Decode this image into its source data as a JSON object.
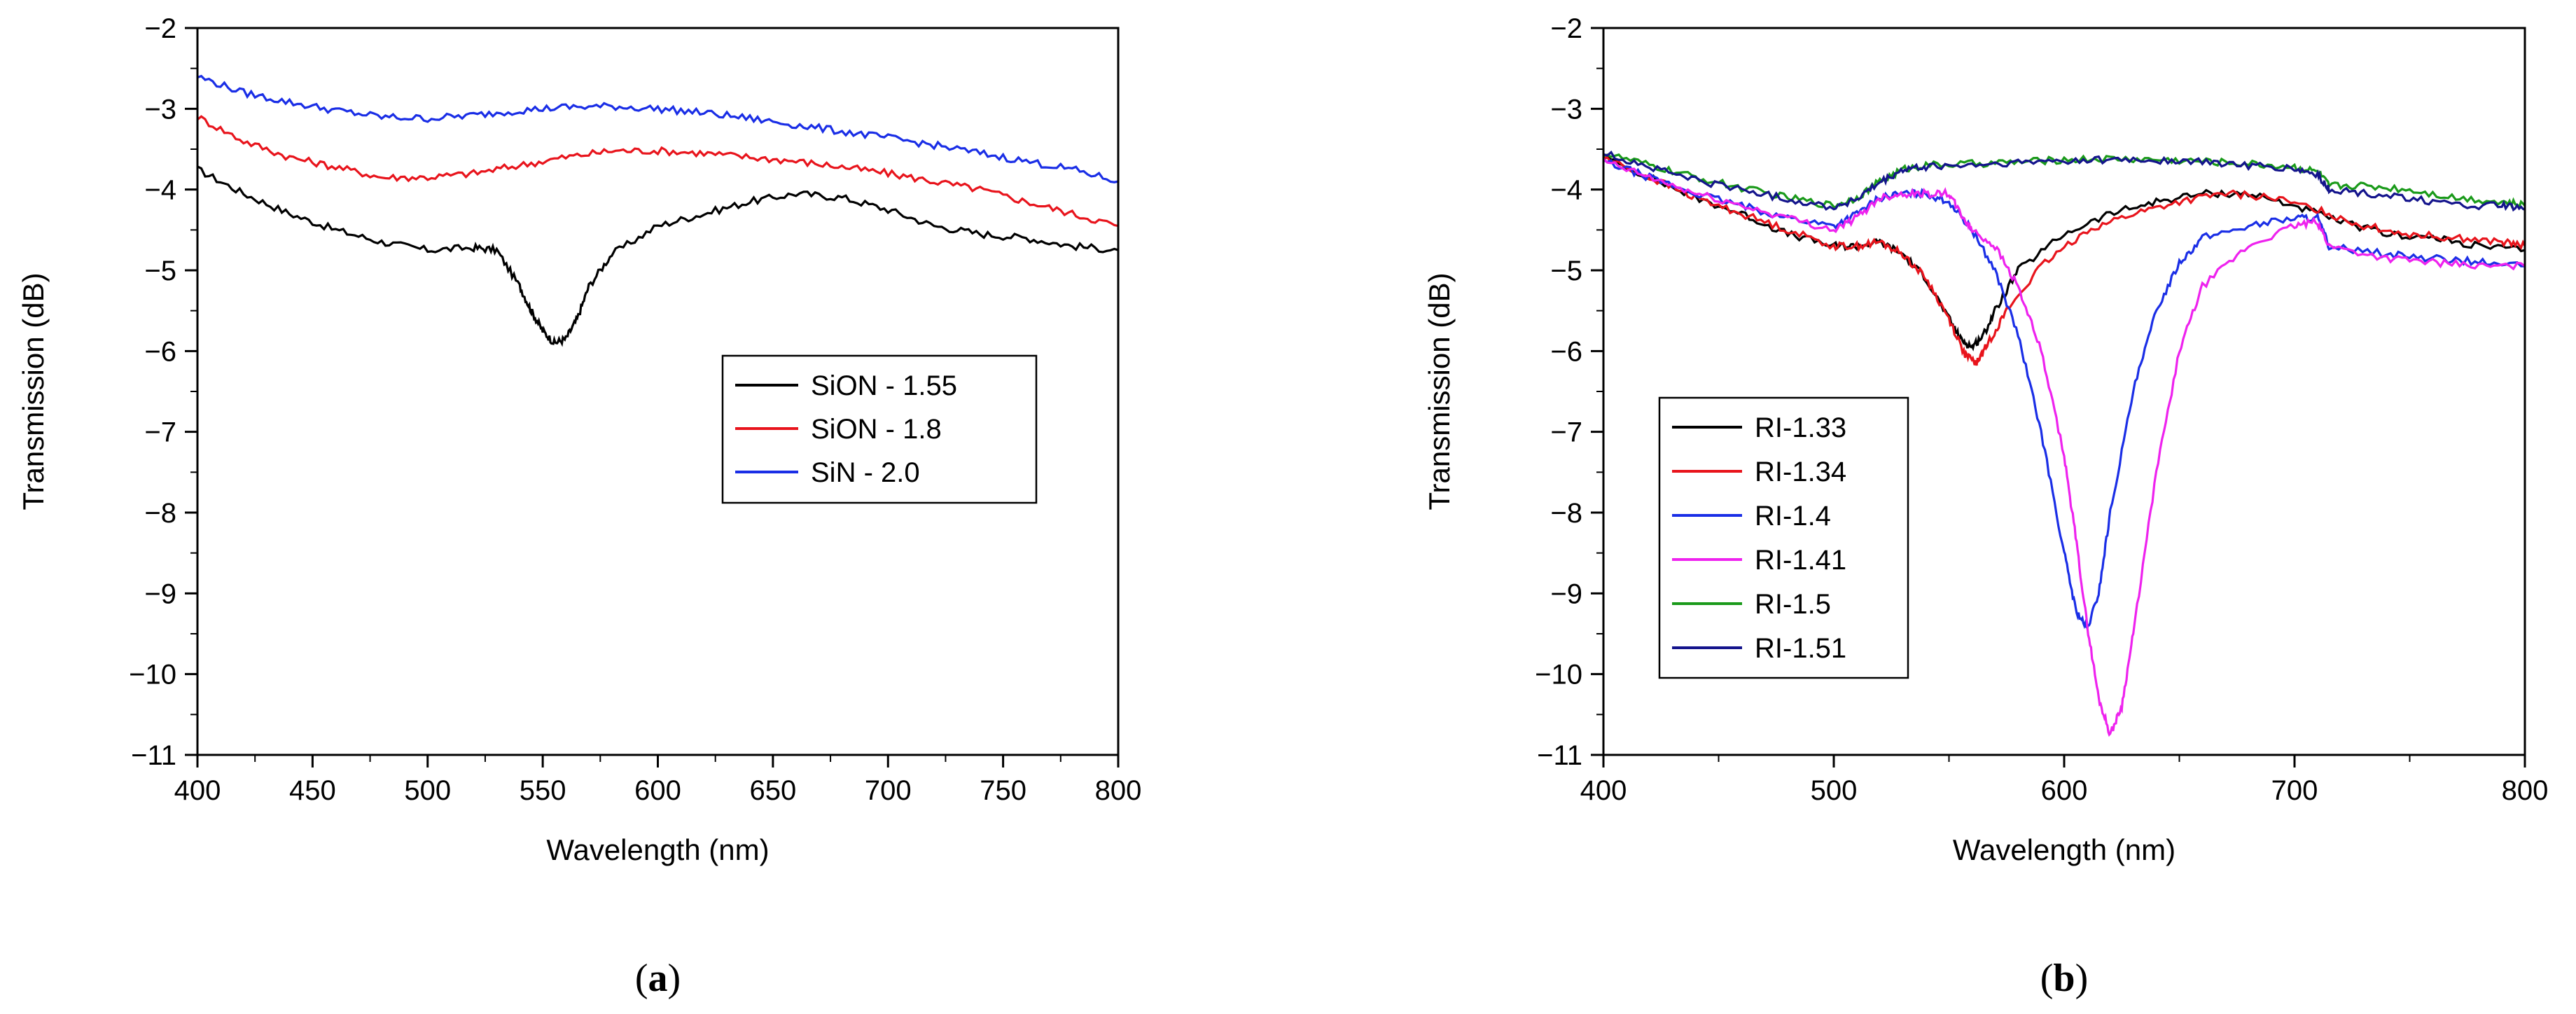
{
  "chart_data": [
    {
      "type": "line",
      "xlabel": "Wavelength (nm)",
      "ylabel": "Transmission (dB)",
      "xlim": [
        400,
        800
      ],
      "ylim": [
        -11,
        -2
      ],
      "xticks": [
        "400",
        "450",
        "500",
        "550",
        "600",
        "650",
        "700",
        "750",
        "800"
      ],
      "yticks": [
        "-2",
        "-3",
        "-4",
        "-5",
        "-6",
        "-7",
        "-8",
        "-9",
        "-10",
        "-11"
      ],
      "legend_position": "center-right",
      "panel_label": "a",
      "series": [
        {
          "name": "SiON - 1.55",
          "color": "#000000",
          "x": [
            400,
            420,
            440,
            460,
            480,
            500,
            520,
            530,
            540,
            545,
            550,
            555,
            560,
            565,
            570,
            580,
            600,
            620,
            640,
            660,
            680,
            700,
            720,
            740,
            760,
            780,
            800
          ],
          "y": [
            -3.75,
            -4.05,
            -4.3,
            -4.5,
            -4.65,
            -4.75,
            -4.72,
            -4.75,
            -5.2,
            -5.5,
            -5.75,
            -5.9,
            -5.85,
            -5.6,
            -5.2,
            -4.8,
            -4.45,
            -4.3,
            -4.15,
            -4.05,
            -4.1,
            -4.25,
            -4.45,
            -4.55,
            -4.6,
            -4.7,
            -4.75
          ]
        },
        {
          "name": "SiON - 1.8",
          "color": "#e8141c",
          "x": [
            400,
            420,
            440,
            460,
            480,
            500,
            520,
            540,
            560,
            580,
            600,
            620,
            640,
            660,
            680,
            700,
            720,
            740,
            760,
            780,
            800
          ],
          "y": [
            -3.1,
            -3.4,
            -3.6,
            -3.72,
            -3.85,
            -3.85,
            -3.8,
            -3.7,
            -3.6,
            -3.52,
            -3.52,
            -3.55,
            -3.6,
            -3.65,
            -3.72,
            -3.8,
            -3.9,
            -4.0,
            -4.15,
            -4.3,
            -4.45
          ]
        },
        {
          "name": "SiN - 2.0",
          "color": "#1a2ee6",
          "x": [
            400,
            420,
            440,
            460,
            480,
            500,
            520,
            540,
            560,
            580,
            600,
            620,
            640,
            660,
            680,
            700,
            720,
            740,
            760,
            780,
            800
          ],
          "y": [
            -2.6,
            -2.8,
            -2.92,
            -3.02,
            -3.1,
            -3.12,
            -3.08,
            -3.02,
            -2.98,
            -2.97,
            -3.0,
            -3.05,
            -3.12,
            -3.2,
            -3.28,
            -3.36,
            -3.45,
            -3.55,
            -3.65,
            -3.75,
            -3.9
          ]
        }
      ]
    },
    {
      "type": "line",
      "xlabel": "Wavelength (nm)",
      "ylabel": "Transmission (dB)",
      "xlim": [
        400,
        800
      ],
      "ylim": [
        -11,
        -2
      ],
      "xticks": [
        "400",
        "500",
        "600",
        "700",
        "800"
      ],
      "yticks": [
        "-2",
        "-3",
        "-4",
        "-5",
        "-6",
        "-7",
        "-8",
        "-9",
        "-10",
        "-11"
      ],
      "legend_position": "bottom-left",
      "panel_label": "b",
      "series": [
        {
          "name": "RI-1.33",
          "color": "#000000",
          "x": [
            400,
            420,
            440,
            460,
            480,
            500,
            510,
            520,
            530,
            540,
            550,
            555,
            560,
            565,
            570,
            580,
            600,
            620,
            640,
            660,
            680,
            700,
            720,
            740,
            760,
            780,
            800
          ],
          "y": [
            -3.6,
            -3.85,
            -4.1,
            -4.3,
            -4.55,
            -4.7,
            -4.7,
            -4.65,
            -4.8,
            -5.1,
            -5.6,
            -5.85,
            -5.95,
            -5.8,
            -5.5,
            -5.0,
            -4.55,
            -4.3,
            -4.15,
            -4.05,
            -4.05,
            -4.2,
            -4.4,
            -4.55,
            -4.6,
            -4.7,
            -4.75
          ]
        },
        {
          "name": "RI-1.34",
          "color": "#e8141c",
          "x": [
            400,
            420,
            440,
            460,
            480,
            500,
            510,
            520,
            530,
            540,
            550,
            557,
            562,
            567,
            575,
            590,
            610,
            630,
            650,
            670,
            690,
            710,
            730,
            750,
            770,
            790,
            800
          ],
          "y": [
            -3.6,
            -3.85,
            -4.1,
            -4.3,
            -4.5,
            -4.7,
            -4.7,
            -4.65,
            -4.8,
            -5.1,
            -5.6,
            -6.05,
            -6.15,
            -5.9,
            -5.5,
            -4.95,
            -4.5,
            -4.3,
            -4.15,
            -4.05,
            -4.1,
            -4.25,
            -4.45,
            -4.55,
            -4.6,
            -4.65,
            -4.7
          ]
        },
        {
          "name": "RI-1.4",
          "color": "#1a2ee6",
          "x": [
            400,
            420,
            440,
            460,
            480,
            500,
            510,
            520,
            530,
            540,
            550,
            560,
            570,
            580,
            590,
            600,
            605,
            610,
            615,
            620,
            630,
            640,
            650,
            660,
            680,
            700,
            710,
            715,
            740,
            760,
            780,
            800
          ],
          "y": [
            -3.65,
            -3.85,
            -4.05,
            -4.2,
            -4.35,
            -4.45,
            -4.3,
            -4.1,
            -4.05,
            -4.05,
            -4.15,
            -4.5,
            -5.0,
            -5.8,
            -7.0,
            -8.5,
            -9.2,
            -9.45,
            -9.0,
            -8.0,
            -6.5,
            -5.5,
            -4.9,
            -4.6,
            -4.45,
            -4.35,
            -4.35,
            -4.7,
            -4.8,
            -4.85,
            -4.9,
            -4.95
          ]
        },
        {
          "name": "RI-1.41",
          "color": "#ee22ee",
          "x": [
            400,
            420,
            440,
            460,
            480,
            500,
            510,
            520,
            530,
            540,
            550,
            555,
            560,
            570,
            580,
            590,
            600,
            605,
            610,
            615,
            620,
            625,
            630,
            640,
            650,
            660,
            680,
            700,
            710,
            715,
            740,
            760,
            780,
            800
          ],
          "y": [
            -3.65,
            -3.85,
            -4.05,
            -4.2,
            -4.35,
            -4.5,
            -4.35,
            -4.1,
            -4.05,
            -4.05,
            -4.05,
            -4.3,
            -4.5,
            -4.7,
            -5.2,
            -6.0,
            -7.3,
            -8.3,
            -9.4,
            -10.3,
            -10.75,
            -10.4,
            -9.5,
            -7.5,
            -6.0,
            -5.2,
            -4.7,
            -4.45,
            -4.4,
            -4.7,
            -4.85,
            -4.9,
            -4.95,
            -4.95
          ]
        },
        {
          "name": "RI-1.5",
          "color": "#1a9a1a",
          "x": [
            400,
            420,
            440,
            460,
            480,
            500,
            510,
            520,
            530,
            540,
            560,
            580,
            600,
            620,
            640,
            660,
            680,
            700,
            710,
            715,
            730,
            750,
            770,
            790,
            800
          ],
          "y": [
            -3.55,
            -3.7,
            -3.85,
            -3.98,
            -4.1,
            -4.2,
            -4.1,
            -3.9,
            -3.75,
            -3.7,
            -3.68,
            -3.66,
            -3.63,
            -3.62,
            -3.63,
            -3.65,
            -3.68,
            -3.72,
            -3.78,
            -3.95,
            -3.95,
            -4.0,
            -4.1,
            -4.15,
            -4.2
          ]
        },
        {
          "name": "RI-1.51",
          "color": "#14148c",
          "x": [
            400,
            420,
            440,
            460,
            480,
            500,
            510,
            520,
            530,
            540,
            560,
            580,
            600,
            620,
            640,
            660,
            680,
            700,
            710,
            715,
            730,
            750,
            770,
            790,
            800
          ],
          "y": [
            -3.55,
            -3.72,
            -3.88,
            -4.0,
            -4.12,
            -4.22,
            -4.12,
            -3.92,
            -3.76,
            -3.72,
            -3.7,
            -3.67,
            -3.64,
            -3.63,
            -3.64,
            -3.66,
            -3.7,
            -3.75,
            -3.82,
            -4.0,
            -4.05,
            -4.1,
            -4.2,
            -4.2,
            -4.25
          ]
        }
      ]
    }
  ]
}
